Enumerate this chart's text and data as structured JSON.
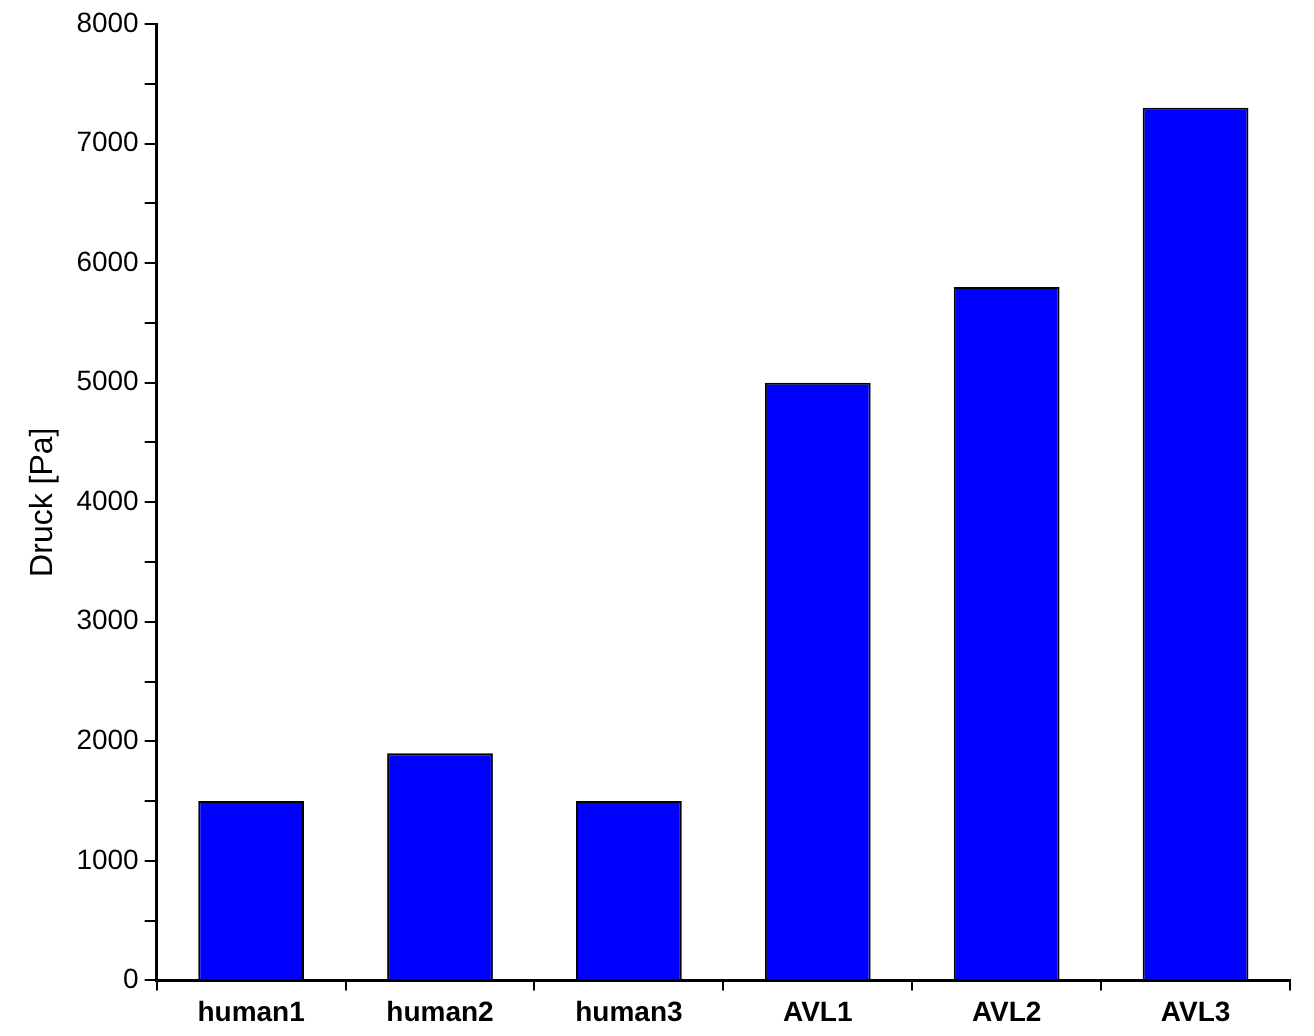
{
  "chart_data": {
    "type": "bar",
    "ylabel": "Druck [Pa]",
    "categories": [
      "human1",
      "human2",
      "human3",
      "AVL1",
      "AVL2",
      "AVL3"
    ],
    "values": [
      1500,
      1900,
      1500,
      5000,
      5800,
      7300
    ],
    "color": "#0000ff",
    "ylim": [
      0,
      8000
    ],
    "yticks": [
      0,
      {
        "value": 500,
        "label": null
      },
      1000,
      {
        "value": 1500,
        "label": null
      },
      2000,
      {
        "value": 2500,
        "label": null
      },
      3000,
      {
        "value": 3500,
        "label": null
      },
      4000,
      {
        "value": 4500,
        "label": null
      },
      5000,
      {
        "value": 5500,
        "label": null
      },
      6000,
      {
        "value": 6500,
        "label": null
      },
      7000,
      {
        "value": 7500,
        "label": null
      },
      8000
    ],
    "grid": false,
    "legend": false
  }
}
